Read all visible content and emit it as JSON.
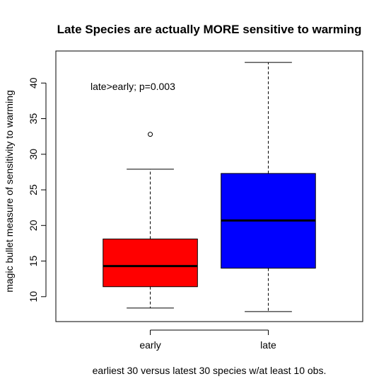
{
  "chart_data": {
    "type": "boxplot",
    "title": "Late Species are actually MORE sensitive to warming",
    "xlabel": "earliest 30 versus latest 30 species w/at least 10 obs.",
    "ylabel": "magic bullet measure of sensitivity to warming",
    "annotation": "late>early; p=0.003",
    "categories": [
      "early",
      "late"
    ],
    "ylim": [
      6.5,
      44.5
    ],
    "yticks": [
      10,
      15,
      20,
      25,
      30,
      35,
      40
    ],
    "ytick_labels": [
      "10",
      "15",
      "20",
      "25",
      "30",
      "35",
      "40"
    ],
    "grid": false,
    "boxes": [
      {
        "name": "early",
        "color": "#ff0000",
        "whisker_low": 8.4,
        "q1": 11.4,
        "median": 14.3,
        "q3": 18.1,
        "whisker_high": 27.9,
        "outliers": [
          32.8
        ]
      },
      {
        "name": "late",
        "color": "#0000ff",
        "whisker_low": 7.9,
        "q1": 14.0,
        "median": 20.7,
        "q3": 27.3,
        "whisker_high": 42.9,
        "outliers": []
      }
    ]
  }
}
